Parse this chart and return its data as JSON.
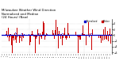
{
  "title": "Milwaukee Weather Wind Direction\nNormalized and Median\n(24 Hours) (New)",
  "title_fontsize": 2.8,
  "n_points": 144,
  "ylim": [
    -6.5,
    5.5
  ],
  "yticks": [
    -6,
    -4,
    -2,
    0,
    2,
    4
  ],
  "median_value": 0.2,
  "median_color": "#0000cc",
  "bar_color": "#cc0000",
  "dot_color": "#0000cc",
  "background_color": "#ffffff",
  "grid_color": "#bbbbbb",
  "legend_blue_label": "Normalized",
  "legend_red_label": "Median",
  "seed": 42,
  "n_vgrid": 4
}
